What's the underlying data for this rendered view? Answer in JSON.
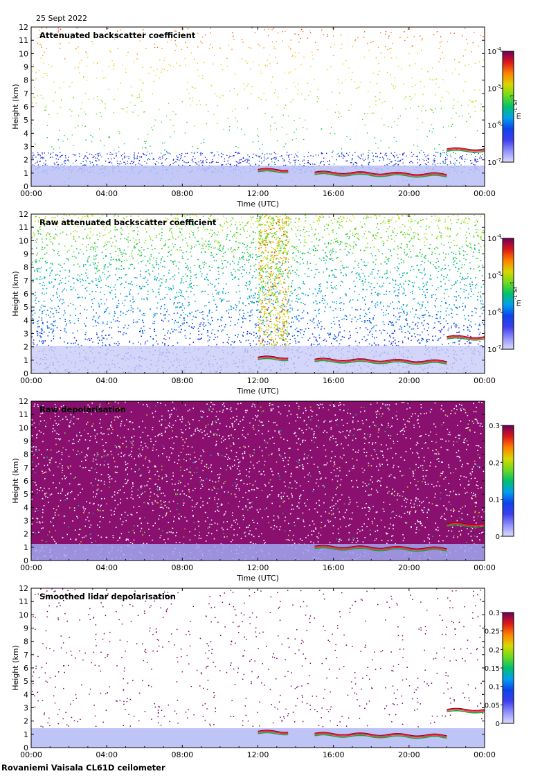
{
  "date": "25 Sept 2022",
  "footer": "Rovaniemi Vaisala CL61D ceilometer",
  "colors": {
    "cloud_low": "#d0d4ff",
    "cloud_mid": "#4040e0",
    "cloud_top": "#ff2020",
    "depol_high": "#7a0060"
  },
  "chart_data": [
    {
      "type": "heatmap",
      "title": "Attenuated backscatter coefficient",
      "xlabel": "Time (UTC)",
      "ylabel": "Height (km)",
      "x_ticks": [
        "00:00",
        "04:00",
        "08:00",
        "12:00",
        "16:00",
        "20:00",
        "00:00"
      ],
      "y_ticks": [
        "0",
        "1",
        "2",
        "3",
        "4",
        "5",
        "6",
        "7",
        "8",
        "9",
        "10",
        "11",
        "12"
      ],
      "ylim": [
        0,
        12
      ],
      "colorbar": {
        "scale": "log",
        "ticks": [
          "10",
          "10",
          "10",
          "10"
        ],
        "tick_exponents": [
          "-7",
          "-6",
          "-5",
          "-4"
        ],
        "unit_base": [
          "m",
          "sr"
        ],
        "unit_exponents": [
          "-1",
          "-1"
        ]
      },
      "features": {
        "noise_level": "low",
        "cloud_layers": [
          {
            "start_h": 12.0,
            "end_h": 13.6,
            "base_km": 1.2
          },
          {
            "start_h": 15.0,
            "end_h": 22.0,
            "base_km": 1.0
          },
          {
            "start_h": 22.0,
            "end_h": 24.0,
            "base_km": 2.75
          }
        ]
      }
    },
    {
      "type": "heatmap",
      "title": "Raw attenuated backscatter coefficient",
      "xlabel": "Time (UTC)",
      "ylabel": "Height (km)",
      "x_ticks": [
        "00:00",
        "04:00",
        "08:00",
        "12:00",
        "16:00",
        "20:00",
        "00:00"
      ],
      "y_ticks": [
        "0",
        "1",
        "2",
        "3",
        "4",
        "5",
        "6",
        "7",
        "8",
        "9",
        "10",
        "11",
        "12"
      ],
      "ylim": [
        0,
        12
      ],
      "colorbar": {
        "scale": "log",
        "ticks": [
          "10",
          "10",
          "10",
          "10"
        ],
        "tick_exponents": [
          "-7",
          "-6",
          "-5",
          "-4"
        ],
        "unit_base": [
          "m",
          "sr"
        ],
        "unit_exponents": [
          "-1",
          "-1"
        ]
      },
      "features": {
        "noise_level": "high",
        "cloud_layers": [
          {
            "start_h": 12.0,
            "end_h": 13.6,
            "base_km": 1.15
          },
          {
            "start_h": 15.0,
            "end_h": 22.0,
            "base_km": 1.0
          },
          {
            "start_h": 22.0,
            "end_h": 24.0,
            "base_km": 2.7
          }
        ]
      }
    },
    {
      "type": "heatmap",
      "title": "Raw depolarisation",
      "xlabel": "Time (UTC)",
      "ylabel": "Height (km)",
      "x_ticks": [
        "00:00",
        "04:00",
        "08:00",
        "12:00",
        "16:00",
        "20:00",
        "00:00"
      ],
      "y_ticks": [
        "0",
        "1",
        "2",
        "3",
        "4",
        "5",
        "6",
        "7",
        "8",
        "9",
        "10",
        "11",
        "12"
      ],
      "ylim": [
        0,
        12
      ],
      "colorbar": {
        "scale": "linear",
        "ticks": [
          "0",
          "0.1",
          "0.2",
          "0.3"
        ]
      },
      "features": {
        "noise_level": "depol",
        "cloud_layers": [
          {
            "start_h": 15.0,
            "end_h": 22.0,
            "base_km": 1.0
          },
          {
            "start_h": 22.0,
            "end_h": 24.0,
            "base_km": 2.7
          }
        ]
      }
    },
    {
      "type": "heatmap",
      "title": "Smoothed lidar depolarisation",
      "xlabel": "Time (UTC)",
      "ylabel": "Height (km)",
      "x_ticks": [
        "00:00",
        "04:00",
        "08:00",
        "12:00",
        "16:00",
        "20:00",
        "00:00"
      ],
      "y_ticks": [
        "0",
        "1",
        "2",
        "3",
        "4",
        "5",
        "6",
        "7",
        "8",
        "9",
        "10",
        "11",
        "12"
      ],
      "ylim": [
        0,
        12
      ],
      "colorbar": {
        "scale": "linear",
        "ticks": [
          "0",
          "0.05",
          "0.1",
          "0.15",
          "0.2",
          "0.25",
          "0.3"
        ]
      },
      "features": {
        "noise_level": "sparse",
        "cloud_layers": [
          {
            "start_h": 12.0,
            "end_h": 13.6,
            "base_km": 1.15
          },
          {
            "start_h": 15.0,
            "end_h": 22.0,
            "base_km": 1.0
          },
          {
            "start_h": 22.0,
            "end_h": 24.0,
            "base_km": 2.8
          }
        ]
      }
    }
  ]
}
